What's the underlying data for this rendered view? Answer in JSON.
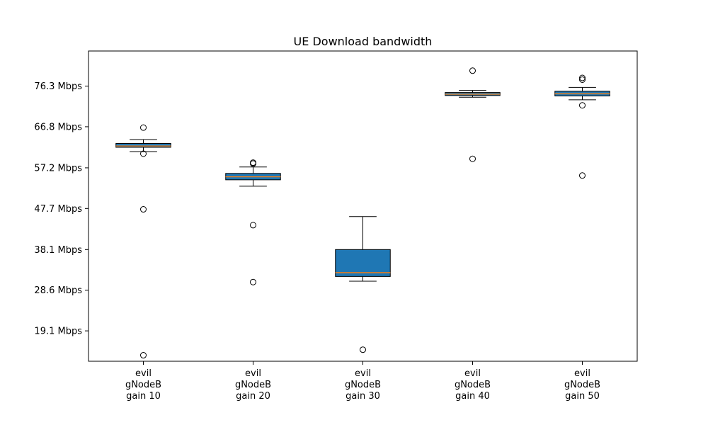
{
  "chart_data": {
    "type": "box",
    "title": "UE Download bandwidth",
    "xlabel": "",
    "ylabel": "",
    "ylim": [
      12.0,
      84.5
    ],
    "y_ticks": [
      {
        "value": 19.1,
        "label": "19.1 Mbps"
      },
      {
        "value": 28.6,
        "label": "28.6 Mbps"
      },
      {
        "value": 38.1,
        "label": "38.1 Mbps"
      },
      {
        "value": 47.7,
        "label": "47.7 Mbps"
      },
      {
        "value": 57.2,
        "label": "57.2 Mbps"
      },
      {
        "value": 66.8,
        "label": "66.8 Mbps"
      },
      {
        "value": 76.3,
        "label": "76.3 Mbps"
      }
    ],
    "categories": [
      [
        "evil",
        "gNodeB",
        "gain 10"
      ],
      [
        "evil",
        "gNodeB",
        "gain 20"
      ],
      [
        "evil",
        "gNodeB",
        "gain 30"
      ],
      [
        "evil",
        "gNodeB",
        "gain 40"
      ],
      [
        "evil",
        "gNodeB",
        "gain 50"
      ]
    ],
    "boxes": [
      {
        "whisker_low": 61.0,
        "q1": 62.0,
        "median": 62.3,
        "q3": 62.9,
        "whisker_high": 63.8,
        "outliers": [
          66.6,
          60.5,
          47.5,
          13.4
        ]
      },
      {
        "whisker_low": 52.9,
        "q1": 54.4,
        "median": 55.1,
        "q3": 55.9,
        "whisker_high": 57.4,
        "outliers": [
          58.4,
          58.2,
          43.8,
          30.5
        ]
      },
      {
        "whisker_low": 30.7,
        "q1": 31.8,
        "median": 32.7,
        "q3": 38.1,
        "whisker_high": 45.8,
        "outliers": [
          14.7
        ]
      },
      {
        "whisker_low": 73.7,
        "q1": 74.1,
        "median": 74.4,
        "q3": 74.8,
        "whisker_high": 75.3,
        "outliers": [
          79.9,
          59.3
        ]
      },
      {
        "whisker_low": 73.1,
        "q1": 74.0,
        "median": 74.5,
        "q3": 75.1,
        "whisker_high": 76.0,
        "outliers": [
          78.2,
          77.8,
          71.8,
          55.4
        ]
      }
    ],
    "box_color": "#1f77b4",
    "median_color": "#ff7f0e",
    "grid": false
  }
}
